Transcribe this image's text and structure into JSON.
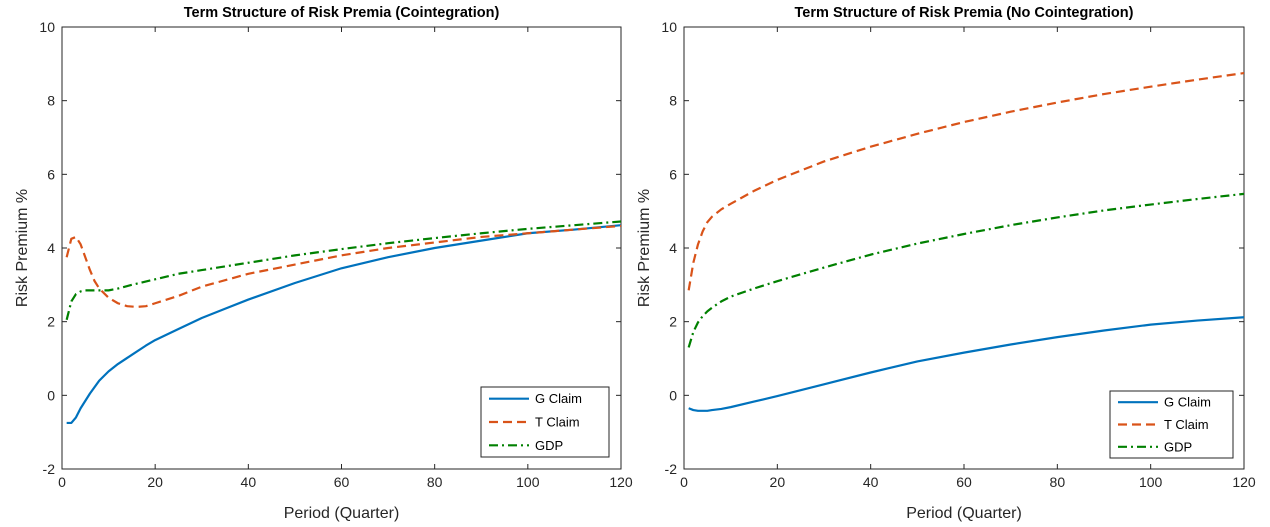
{
  "chart_data": [
    {
      "type": "line",
      "title": "Term Structure of Risk Premia (Cointegration)",
      "xlabel": "Period (Quarter)",
      "ylabel": "Risk Premium %",
      "xlim": [
        0,
        120
      ],
      "ylim": [
        -2,
        10
      ],
      "xticks": [
        0,
        20,
        40,
        60,
        80,
        100,
        120
      ],
      "yticks": [
        -2,
        0,
        2,
        4,
        6,
        8,
        10
      ],
      "grid": false,
      "legend_position": "bottom-right",
      "series": [
        {
          "name": "G Claim",
          "color": "#0072BD",
          "style": "solid",
          "x": [
            1,
            2,
            3,
            4,
            6,
            8,
            10,
            12,
            15,
            18,
            20,
            25,
            30,
            35,
            40,
            50,
            60,
            70,
            80,
            90,
            100,
            110,
            120
          ],
          "y": [
            -0.75,
            -0.75,
            -0.6,
            -0.35,
            0.05,
            0.4,
            0.65,
            0.85,
            1.1,
            1.35,
            1.5,
            1.8,
            2.1,
            2.35,
            2.6,
            3.05,
            3.45,
            3.75,
            4.0,
            4.2,
            4.4,
            4.5,
            4.62
          ]
        },
        {
          "name": "T Claim",
          "color": "#D95319",
          "style": "dashed",
          "x": [
            1,
            2,
            3,
            4,
            5,
            6,
            7,
            8,
            10,
            12,
            14,
            16,
            18,
            20,
            25,
            30,
            40,
            50,
            60,
            70,
            80,
            90,
            100,
            110,
            120
          ],
          "y": [
            3.75,
            4.25,
            4.3,
            4.1,
            3.75,
            3.4,
            3.1,
            2.9,
            2.65,
            2.5,
            2.42,
            2.4,
            2.42,
            2.5,
            2.7,
            2.95,
            3.3,
            3.55,
            3.8,
            4.0,
            4.15,
            4.3,
            4.4,
            4.5,
            4.6
          ]
        },
        {
          "name": "GDP",
          "color": "#008000",
          "style": "dashdot",
          "x": [
            1,
            2,
            3,
            4,
            5,
            6,
            8,
            10,
            12,
            15,
            20,
            25,
            30,
            40,
            50,
            60,
            70,
            80,
            90,
            100,
            110,
            120
          ],
          "y": [
            2.05,
            2.55,
            2.75,
            2.82,
            2.85,
            2.85,
            2.85,
            2.85,
            2.9,
            3.0,
            3.15,
            3.3,
            3.4,
            3.6,
            3.8,
            3.97,
            4.13,
            4.27,
            4.4,
            4.52,
            4.62,
            4.72
          ]
        }
      ]
    },
    {
      "type": "line",
      "title": "Term Structure of Risk Premia (No Cointegration)",
      "xlabel": "Period (Quarter)",
      "ylabel": "Risk Premium %",
      "xlim": [
        0,
        120
      ],
      "ylim": [
        -2,
        10
      ],
      "xticks": [
        0,
        20,
        40,
        60,
        80,
        100,
        120
      ],
      "yticks": [
        -2,
        0,
        2,
        4,
        6,
        8,
        10
      ],
      "grid": false,
      "legend_position": "bottom-right",
      "series": [
        {
          "name": "G Claim",
          "color": "#0072BD",
          "style": "solid",
          "x": [
            1,
            2,
            3,
            4,
            5,
            6,
            8,
            10,
            15,
            20,
            30,
            40,
            50,
            60,
            70,
            80,
            90,
            100,
            110,
            120
          ],
          "y": [
            -0.35,
            -0.4,
            -0.42,
            -0.42,
            -0.42,
            -0.4,
            -0.37,
            -0.32,
            -0.17,
            -0.02,
            0.3,
            0.62,
            0.92,
            1.16,
            1.38,
            1.58,
            1.76,
            1.92,
            2.03,
            2.12
          ]
        },
        {
          "name": "T Claim",
          "color": "#D95319",
          "style": "dashed",
          "x": [
            1,
            2,
            3,
            4,
            5,
            6,
            8,
            10,
            15,
            20,
            30,
            40,
            50,
            60,
            70,
            80,
            90,
            100,
            110,
            120
          ],
          "y": [
            2.85,
            3.6,
            4.1,
            4.45,
            4.7,
            4.85,
            5.05,
            5.2,
            5.55,
            5.85,
            6.35,
            6.75,
            7.1,
            7.42,
            7.7,
            7.95,
            8.18,
            8.38,
            8.57,
            8.75
          ]
        },
        {
          "name": "GDP",
          "color": "#008000",
          "style": "dashdot",
          "x": [
            1,
            2,
            3,
            4,
            5,
            6,
            8,
            10,
            15,
            20,
            30,
            40,
            50,
            60,
            70,
            80,
            90,
            100,
            110,
            120
          ],
          "y": [
            1.3,
            1.72,
            1.98,
            2.15,
            2.28,
            2.38,
            2.55,
            2.68,
            2.9,
            3.1,
            3.47,
            3.82,
            4.12,
            4.38,
            4.62,
            4.83,
            5.02,
            5.18,
            5.33,
            5.47
          ]
        }
      ]
    }
  ]
}
